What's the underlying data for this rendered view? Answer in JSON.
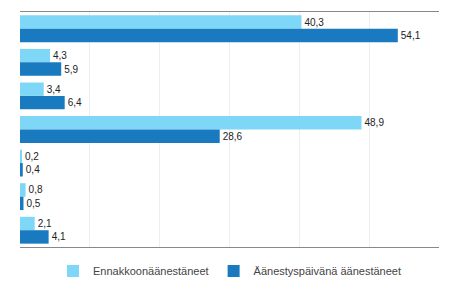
{
  "chart_data": {
    "type": "bar",
    "orientation": "horizontal",
    "categories": [
      null,
      null,
      null,
      null,
      null,
      null,
      null
    ],
    "series": [
      {
        "name": "Ennakkoonäänestäneet",
        "color": "#7fd7f7",
        "values": [
          40.3,
          4.3,
          3.4,
          48.9,
          0.2,
          0.8,
          2.1
        ],
        "value_labels": [
          "40,3",
          "4,3",
          "3,4",
          "48,9",
          "0,2",
          "0,8",
          "2,1"
        ]
      },
      {
        "name": "Äänestyspäivänä äänestäneet",
        "color": "#1a7abf",
        "values": [
          54.1,
          5.9,
          6.4,
          28.6,
          0.4,
          0.5,
          4.1
        ],
        "value_labels": [
          "54,1",
          "5,9",
          "6,4",
          "28,6",
          "0,4",
          "0,5",
          "4,1"
        ]
      }
    ],
    "xlim": [
      0,
      60
    ],
    "xticks": [
      10,
      20,
      30,
      40,
      50
    ],
    "grid": true,
    "tick_labels": false,
    "data_labels": true,
    "legend": "bottom"
  }
}
